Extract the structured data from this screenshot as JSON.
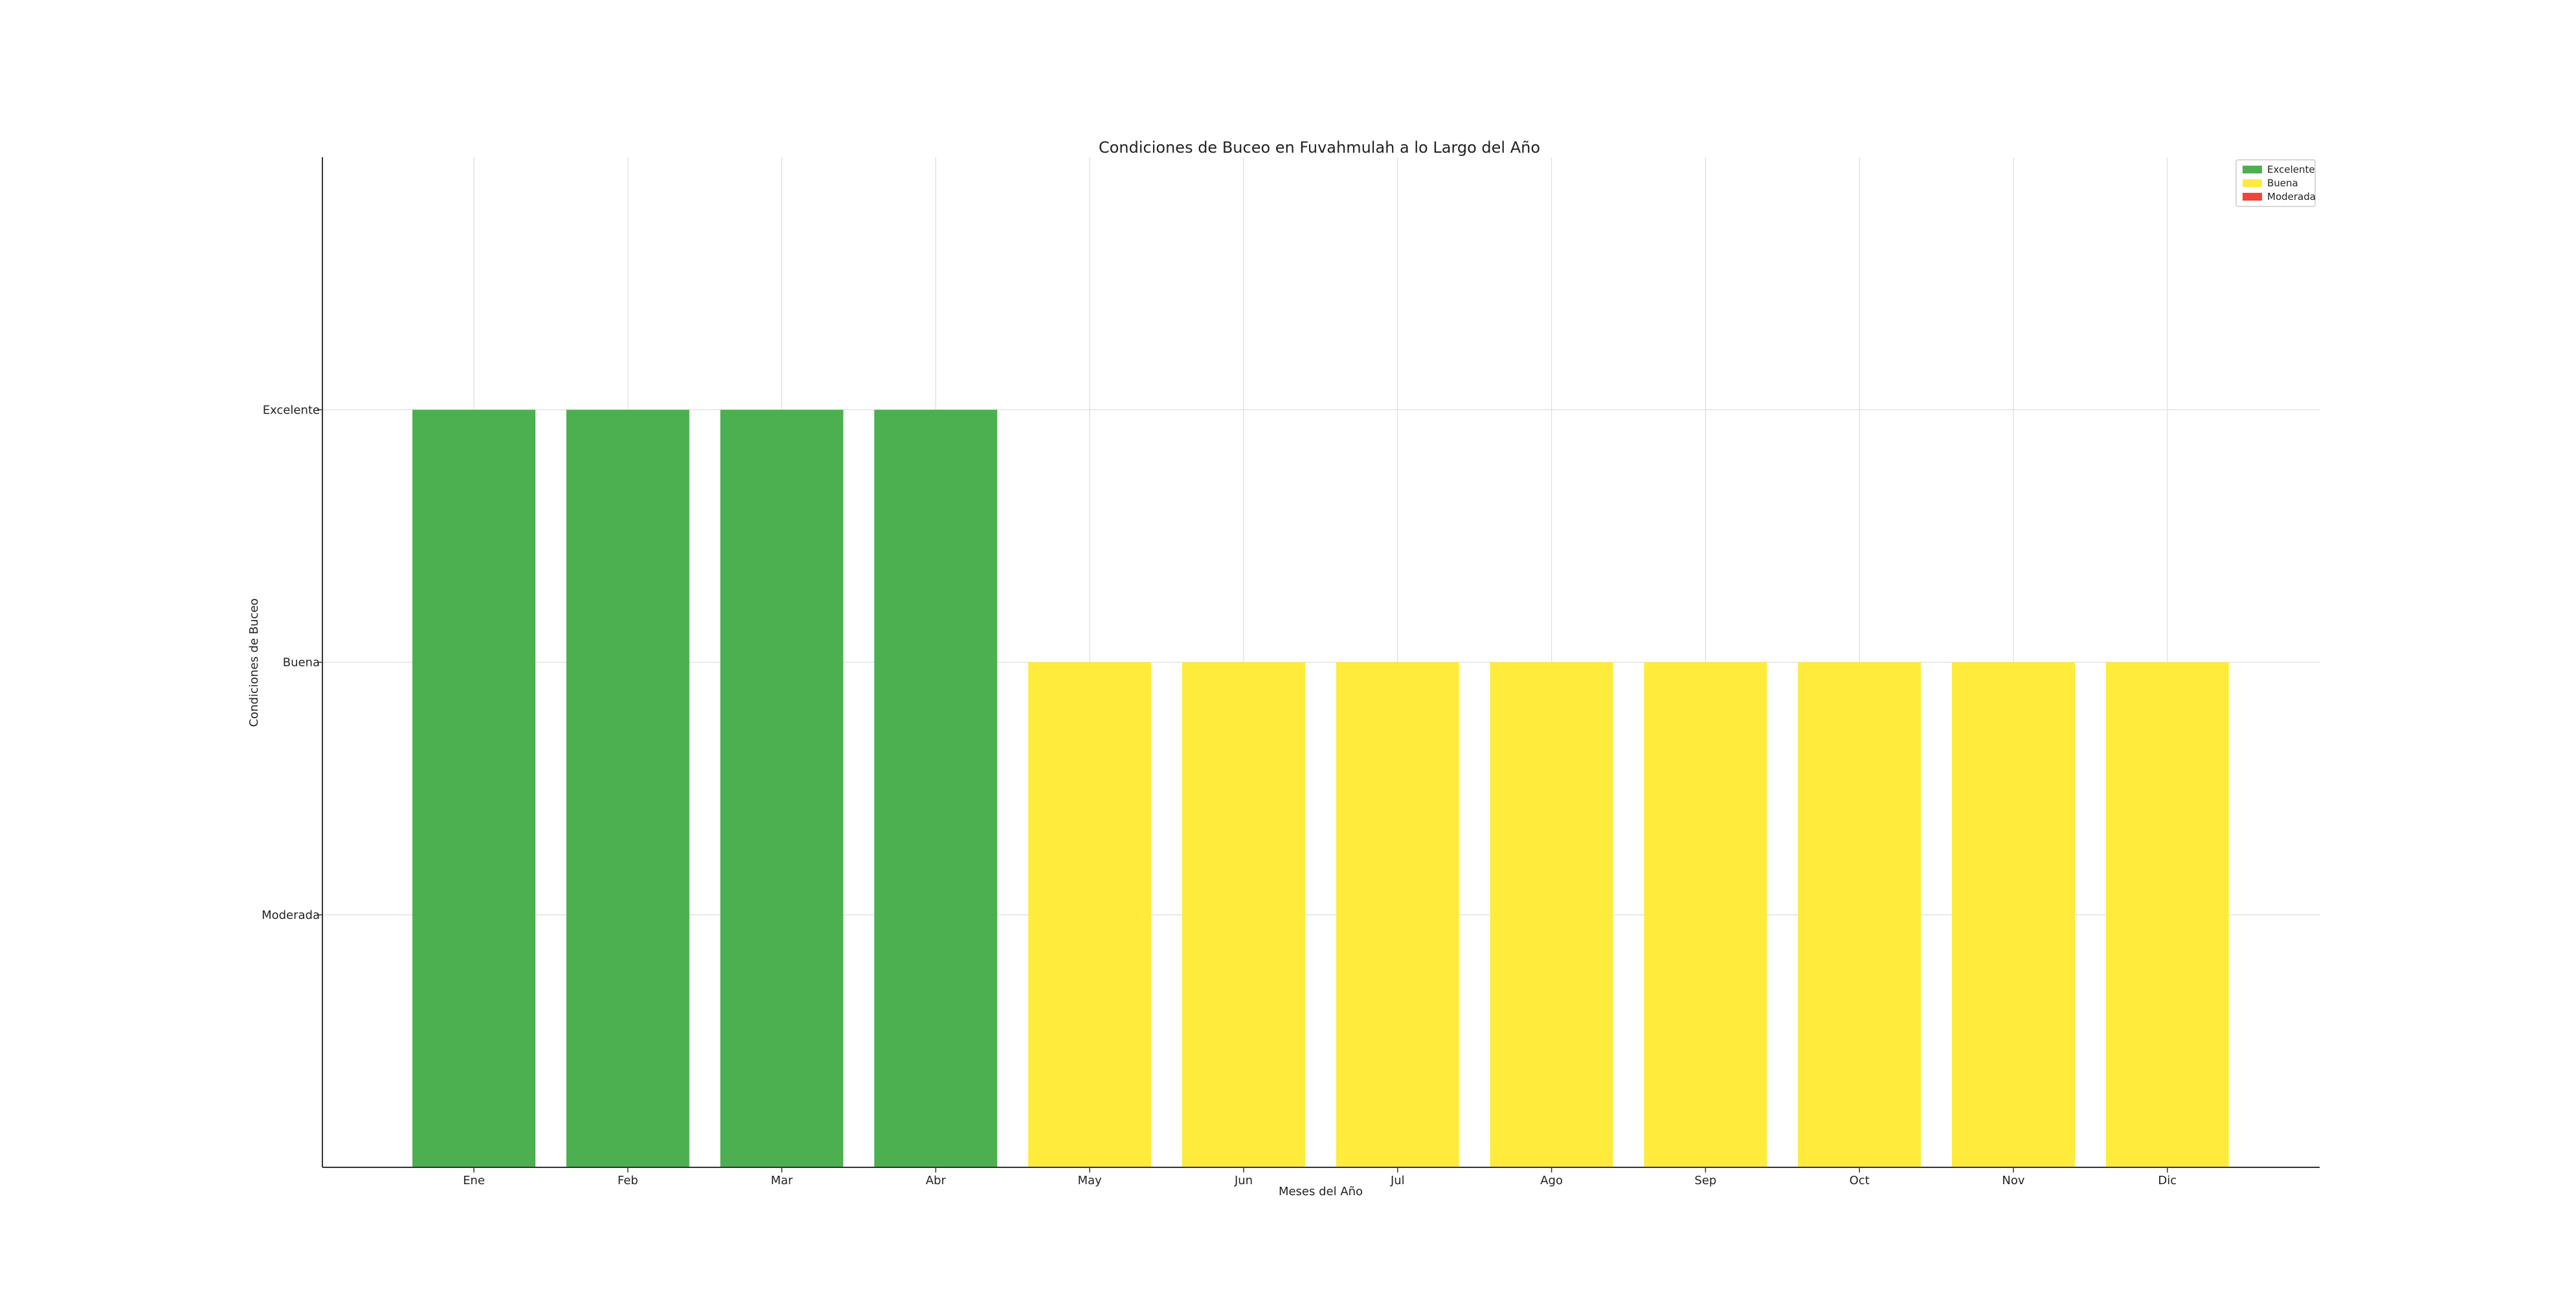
{
  "chart_data": {
    "type": "bar",
    "title": "Condiciones de Buceo en Fuvahmulah a lo Largo del Año",
    "xlabel": "Meses del Año",
    "ylabel": "Condiciones de Buceo",
    "categories": [
      "Ene",
      "Feb",
      "Mar",
      "Abr",
      "May",
      "Jun",
      "Jul",
      "Ago",
      "Sep",
      "Oct",
      "Nov",
      "Dic"
    ],
    "values": [
      3,
      3,
      3,
      3,
      2,
      2,
      2,
      2,
      2,
      2,
      2,
      2
    ],
    "condition_per_month": [
      "Excelente",
      "Excelente",
      "Excelente",
      "Excelente",
      "Buena",
      "Buena",
      "Buena",
      "Buena",
      "Buena",
      "Buena",
      "Buena",
      "Buena"
    ],
    "ylim": [
      0,
      4
    ],
    "y_ticks": [
      {
        "value": 1,
        "label": "Moderada"
      },
      {
        "value": 2,
        "label": "Buena"
      },
      {
        "value": 3,
        "label": "Excelente"
      }
    ],
    "grid": true,
    "legend_position": "top-right",
    "legend": [
      {
        "label": "Excelente",
        "color": "#4caf50"
      },
      {
        "label": "Buena",
        "color": "#ffeb3b"
      },
      {
        "label": "Moderada",
        "color": "#f44336"
      }
    ],
    "colors": {
      "Excelente": "#4caf50",
      "Buena": "#ffeb3b",
      "Moderada": "#f44336"
    }
  }
}
